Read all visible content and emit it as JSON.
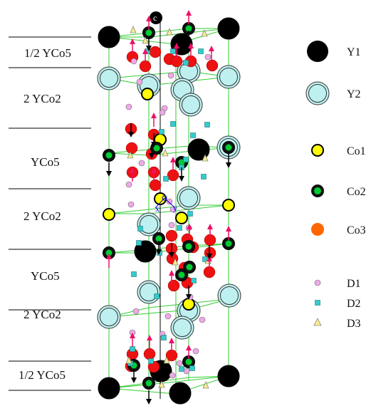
{
  "layers": [
    {
      "label": "1/2 YCo5"
    },
    {
      "label": "2 YCo2"
    },
    {
      "label": "YCo5"
    },
    {
      "label": "2 YCo2"
    },
    {
      "label": "YCo5"
    },
    {
      "label": "2 YCo2"
    },
    {
      "label": "1/2 YCo5"
    }
  ],
  "legend": [
    {
      "label": "Y1",
      "icon": "y1-atom-icon"
    },
    {
      "label": "Y2",
      "icon": "y2-atom-icon"
    },
    {
      "label": "Co1",
      "icon": "co1-atom-icon"
    },
    {
      "label": "Co2",
      "icon": "co2-atom-icon"
    },
    {
      "label": "Co3",
      "icon": "co3-atom-icon"
    },
    {
      "label": "D1",
      "icon": "d1-site-icon"
    },
    {
      "label": "D2",
      "icon": "d2-site-icon"
    },
    {
      "label": "D3",
      "icon": "d3-site-icon"
    }
  ],
  "axes": {
    "c": "c",
    "x": "x",
    "y": "y"
  },
  "colors": {
    "Y1": "#000000",
    "Y2": "#bff0f0",
    "Co1": "#ffff00",
    "Co2": "#00cc33",
    "Co3": "#ff6600",
    "Co3_in_structure": "#ee1111",
    "D1": "#f0a8e8",
    "D2": "#33cccc",
    "D3": "#f5ec90",
    "moment_up": "#ee1166",
    "moment_down": "#000000",
    "cell_edges": "#33cc33"
  }
}
